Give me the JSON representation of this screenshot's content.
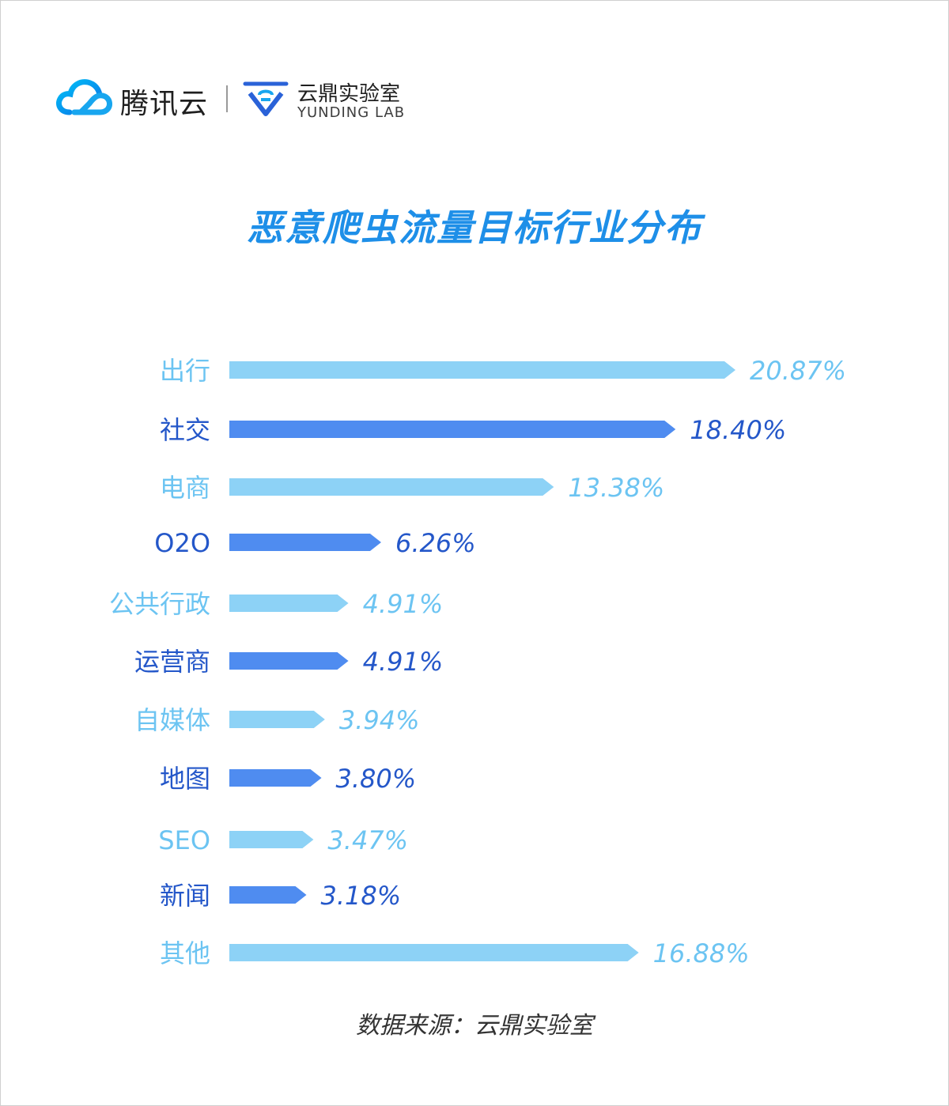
{
  "header": {
    "tencent_name": "腾讯云",
    "yunding_name": "云鼎实验室",
    "yunding_en": "YUNDING LAB",
    "icons": [
      "cloud-logo-icon",
      "yunding-logo-icon"
    ]
  },
  "colors": {
    "light_bar": "#8dd2f6",
    "dark_bar": "#4f8cf0",
    "light_text": "#6cc4f2",
    "dark_text": "#2457c9",
    "title": "#1e8fe8"
  },
  "chart_data": {
    "type": "bar",
    "orientation": "horizontal",
    "title": "恶意爬虫流量目标行业分布",
    "categories": [
      "出行",
      "社交",
      "电商",
      "O2O",
      "公共行政",
      "运营商",
      "自媒体",
      "地图",
      "SEO",
      "新闻",
      "其他"
    ],
    "values": [
      20.87,
      18.4,
      13.38,
      6.26,
      4.91,
      4.91,
      3.94,
      3.8,
      3.47,
      3.18,
      16.88
    ],
    "value_labels": [
      "20.87%",
      "18.40%",
      "13.38%",
      "6.26%",
      "4.91%",
      "4.91%",
      "3.94%",
      "3.80%",
      "3.47%",
      "3.18%",
      "16.88%"
    ],
    "unit": "%",
    "xlim": [
      0,
      20.87
    ],
    "grid": false,
    "legend": "none"
  },
  "footer": {
    "source": "数据来源：云鼎实验室"
  }
}
